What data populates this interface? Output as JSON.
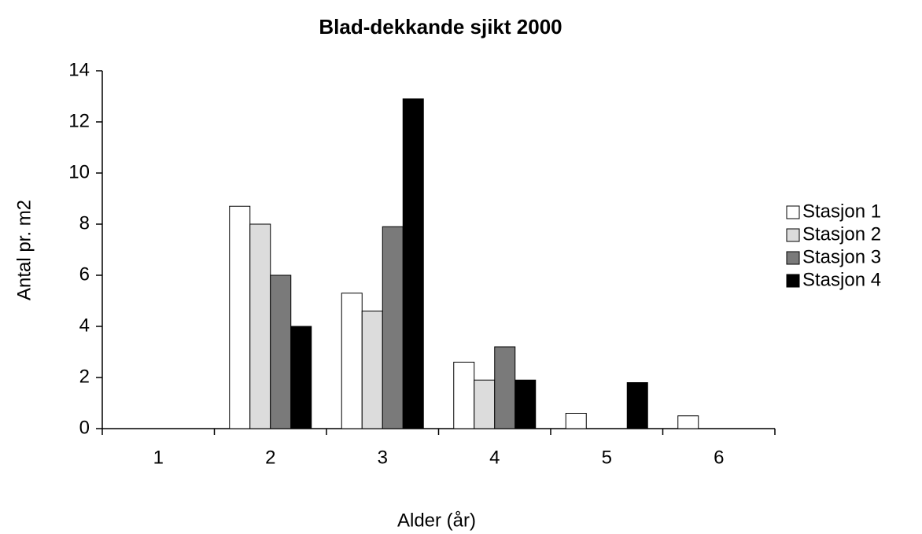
{
  "chart_data": {
    "type": "bar",
    "title": "Blad-dekkande sjikt 2000",
    "x_label": "Alder (år)",
    "y_label": "Antal pr. m2",
    "categories": [
      "1",
      "2",
      "3",
      "4",
      "5",
      "6"
    ],
    "series": [
      {
        "name": "Stasjon 1",
        "color": "#ffffff",
        "values": [
          0,
          8.7,
          5.3,
          2.6,
          0.6,
          0.5
        ]
      },
      {
        "name": "Stasjon 2",
        "color": "#dcdcdc",
        "values": [
          0,
          8.0,
          4.6,
          1.9,
          0,
          0
        ]
      },
      {
        "name": "Stasjon 3",
        "color": "#7a7a7a",
        "values": [
          0,
          6.0,
          7.9,
          3.2,
          0,
          0
        ]
      },
      {
        "name": "Stasjon 4",
        "color": "#000000",
        "values": [
          0,
          4.0,
          12.9,
          1.9,
          1.8,
          0
        ]
      }
    ],
    "ylim": [
      0,
      14
    ],
    "yticks": [
      0,
      2,
      4,
      6,
      8,
      10,
      12,
      14
    ],
    "legend": "right"
  }
}
